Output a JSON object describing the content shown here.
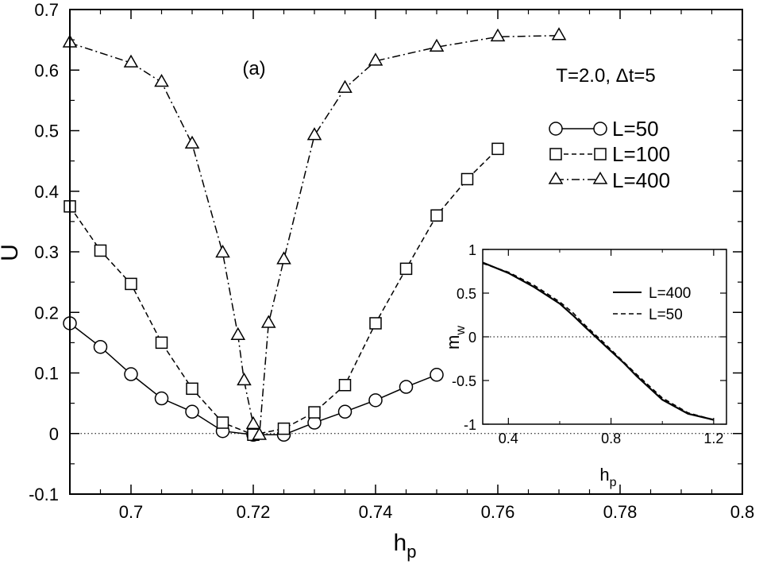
{
  "chart_data": [
    {
      "type": "line",
      "panel_label": "(a)",
      "annotation": "T=2.0, Δt=5",
      "xlabel": "h",
      "xlabel_sub": "p",
      "ylabel": "U",
      "xlim": [
        0.69,
        0.8
      ],
      "ylim": [
        -0.1,
        0.7
      ],
      "x_ticks": [
        0.7,
        0.72,
        0.74,
        0.76,
        0.78,
        0.8
      ],
      "x_tick_labels": [
        "0.7",
        "0.72",
        "0.74",
        "0.76",
        "0.78",
        "0.8"
      ],
      "y_ticks": [
        -0.1,
        0,
        0.1,
        0.2,
        0.3,
        0.4,
        0.5,
        0.6,
        0.7
      ],
      "y_tick_labels": [
        "-0.1",
        "0",
        "0.1",
        "0.2",
        "0.3",
        "0.4",
        "0.5",
        "0.6",
        "0.7"
      ],
      "reference_line_y": 0,
      "legend_position": "upper-right",
      "series": [
        {
          "name": "L=50",
          "marker": "circle",
          "linestyle": "solid",
          "x": [
            0.69,
            0.695,
            0.7,
            0.705,
            0.71,
            0.715,
            0.72,
            0.725,
            0.73,
            0.735,
            0.74,
            0.745,
            0.75
          ],
          "values": [
            0.182,
            0.143,
            0.098,
            0.058,
            0.036,
            0.004,
            -0.002,
            -0.002,
            0.018,
            0.036,
            0.055,
            0.077,
            0.097
          ]
        },
        {
          "name": "L=100",
          "marker": "square",
          "linestyle": "dashed",
          "x": [
            0.69,
            0.695,
            0.7,
            0.705,
            0.71,
            0.715,
            0.72,
            0.725,
            0.73,
            0.735,
            0.74,
            0.745,
            0.75,
            0.755,
            0.76
          ],
          "values": [
            0.375,
            0.302,
            0.247,
            0.15,
            0.074,
            0.018,
            -0.002,
            0.008,
            0.035,
            0.08,
            0.182,
            0.272,
            0.36,
            0.42,
            0.47
          ]
        },
        {
          "name": "L=400",
          "marker": "triangle",
          "linestyle": "dashdot",
          "x": [
            0.69,
            0.7,
            0.705,
            0.71,
            0.715,
            0.7175,
            0.7185,
            0.72,
            0.721,
            0.7225,
            0.725,
            0.73,
            0.735,
            0.74,
            0.75,
            0.76,
            0.77
          ],
          "values": [
            0.645,
            0.612,
            0.58,
            0.478,
            0.298,
            0.162,
            0.087,
            0.015,
            -0.003,
            0.182,
            0.287,
            0.492,
            0.57,
            0.615,
            0.638,
            0.655,
            0.657
          ]
        }
      ]
    },
    {
      "type": "line",
      "role": "inset",
      "xlabel": "h",
      "xlabel_sub": "p",
      "ylabel": "m",
      "ylabel_sub": "w",
      "xlim": [
        0.3,
        1.25
      ],
      "ylim": [
        -1,
        1
      ],
      "x_ticks": [
        0.4,
        0.8,
        1.2
      ],
      "x_tick_labels": [
        "0.4",
        "0.8",
        "1.2"
      ],
      "y_ticks": [
        -1,
        -0.5,
        0,
        0.5,
        1
      ],
      "y_tick_labels": [
        "-1",
        "-0.5",
        "0",
        "0.5",
        "1"
      ],
      "reference_line_y": 0,
      "legend_position": "upper-right",
      "series": [
        {
          "name": "L=400",
          "linestyle": "solid",
          "x": [
            0.3,
            0.4,
            0.5,
            0.6,
            0.65,
            0.7,
            0.74,
            0.78,
            0.85,
            0.9,
            1.0,
            1.1,
            1.2
          ],
          "values": [
            0.85,
            0.73,
            0.57,
            0.38,
            0.25,
            0.11,
            0.0,
            -0.11,
            -0.3,
            -0.45,
            -0.72,
            -0.88,
            -0.95
          ]
        },
        {
          "name": "L=50",
          "linestyle": "dashed",
          "x": [
            0.3,
            0.4,
            0.5,
            0.6,
            0.65,
            0.7,
            0.74,
            0.78,
            0.85,
            0.9,
            1.0,
            1.1,
            1.2
          ],
          "values": [
            0.84,
            0.74,
            0.59,
            0.4,
            0.28,
            0.13,
            0.02,
            -0.09,
            -0.29,
            -0.43,
            -0.7,
            -0.87,
            -0.95
          ]
        }
      ]
    }
  ]
}
